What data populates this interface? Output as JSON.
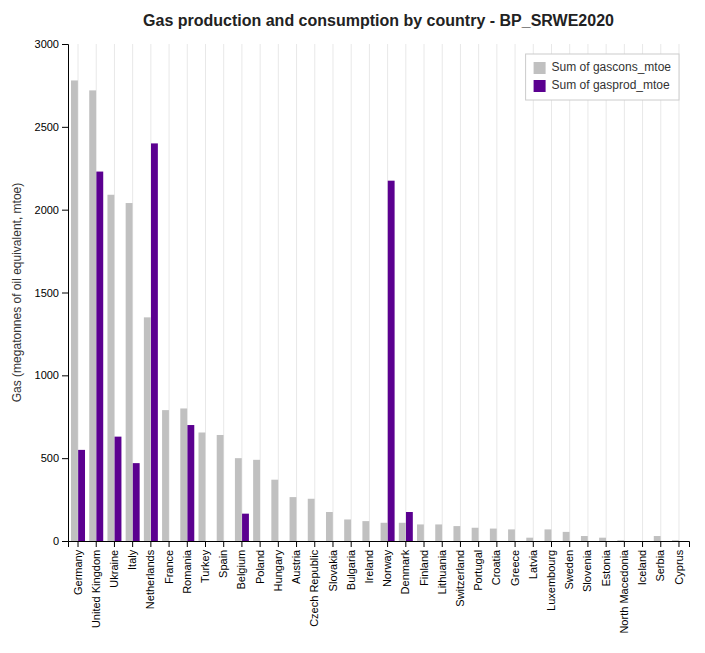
{
  "chart_data": {
    "type": "bar",
    "title": "Gas production and consumption by country - BP_SRWE2020",
    "ylabel": "Gas (megatonnes of oil equivalent, mtoe)",
    "categories": [
      "Germany",
      "United Kingdom",
      "Ukraine",
      "Italy",
      "Netherlands",
      "France",
      "Romania",
      "Turkey",
      "Spain",
      "Belgium",
      "Poland",
      "Hungary",
      "Austria",
      "Czech Republic",
      "Slovakia",
      "Bulgaria",
      "Ireland",
      "Norway",
      "Denmark",
      "Finland",
      "Lithuania",
      "Switzerland",
      "Portugal",
      "Croatia",
      "Greece",
      "Latvia",
      "Luxembourg",
      "Sweden",
      "Slovenia",
      "Estonia",
      "North Macedonia",
      "Iceland",
      "Serbia",
      "Cyprus"
    ],
    "series": [
      {
        "name": "Sum of gascons_mtoe",
        "color": "#c0c0c0",
        "values": [
          2780,
          2720,
          2090,
          2040,
          1350,
          790,
          800,
          655,
          640,
          500,
          490,
          370,
          265,
          255,
          175,
          130,
          120,
          110,
          110,
          100,
          100,
          90,
          80,
          75,
          70,
          20,
          70,
          55,
          30,
          20,
          5,
          0,
          30,
          5
        ]
      },
      {
        "name": "Sum of gasprod_mtoe",
        "color": "#5b0090",
        "values": [
          550,
          2230,
          630,
          470,
          2400,
          0,
          700,
          0,
          0,
          165,
          0,
          0,
          0,
          0,
          0,
          0,
          0,
          2175,
          175,
          0,
          0,
          0,
          0,
          0,
          0,
          0,
          0,
          0,
          0,
          0,
          0,
          0,
          0,
          0
        ]
      }
    ],
    "ylim": [
      0,
      3000
    ],
    "yticks": [
      0,
      500,
      1000,
      1500,
      2000,
      2500,
      3000
    ],
    "grid": "x",
    "legend": "upper right"
  }
}
